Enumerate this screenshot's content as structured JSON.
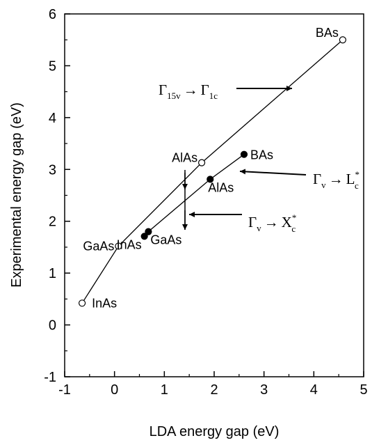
{
  "chart_data": {
    "type": "line",
    "xlabel": "LDA energy gap (eV)",
    "ylabel": "Experimental energy gap (eV)",
    "xlim": [
      -1,
      5
    ],
    "ylim": [
      -1,
      6
    ],
    "xticks": [
      "-1",
      "0",
      "1",
      "2",
      "3",
      "4",
      "5"
    ],
    "yticks": [
      "-1",
      "0",
      "1",
      "2",
      "3",
      "4",
      "5",
      "6"
    ],
    "grid": false,
    "series": [
      {
        "marker": "open-circle",
        "points": [
          {
            "x": -0.65,
            "y": 0.42,
            "label": "InAs"
          },
          {
            "x": 0.08,
            "y": 1.52,
            "label": "GaAs"
          },
          {
            "x": 1.75,
            "y": 3.13,
            "label": "AlAs"
          },
          {
            "x": 4.58,
            "y": 5.5,
            "label": "BAs"
          }
        ]
      },
      {
        "marker": "filled-circle",
        "points": [
          {
            "x": 0.6,
            "y": 1.71,
            "label": "InAs"
          },
          {
            "x": 0.68,
            "y": 1.8,
            "label": "GaAs"
          },
          {
            "x": 1.92,
            "y": 2.81,
            "label": "AlAs"
          },
          {
            "x": 2.6,
            "y": 3.29,
            "label": "BAs"
          }
        ]
      }
    ],
    "annotations": [
      {
        "text": "Γ",
        "sub": "15v",
        "arrow": "→",
        "text2": "Γ",
        "sub2": "1c"
      },
      {
        "text": "Γ",
        "sub": "v",
        "arrow": "→",
        "text2": "L",
        "sub2": "c",
        "sup2": "*"
      },
      {
        "text": "Γ",
        "sub": "v",
        "arrow": "→",
        "text2": "X",
        "sub2": "c",
        "sup2": "*"
      }
    ]
  }
}
